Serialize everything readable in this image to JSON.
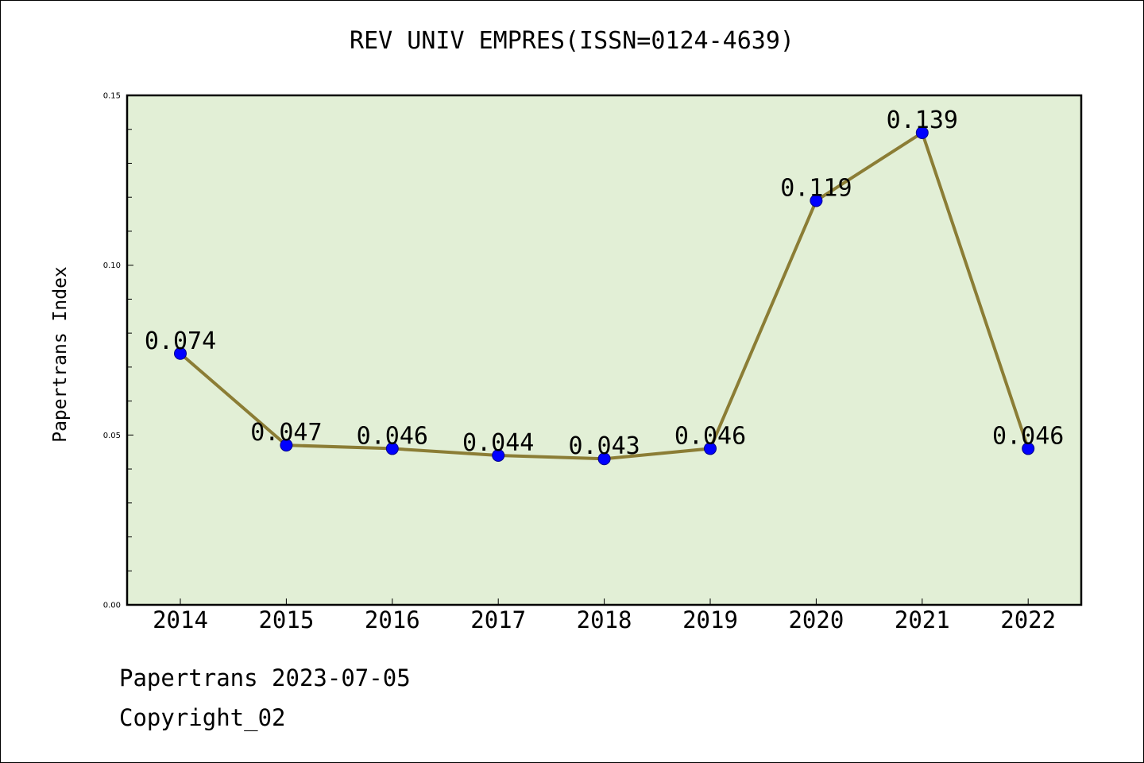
{
  "chart_data": {
    "type": "line",
    "title": "REV UNIV EMPRES(ISSN=0124-4639)",
    "xlabel": "",
    "ylabel": "Papertrans Index",
    "categories": [
      "2014",
      "2015",
      "2016",
      "2017",
      "2018",
      "2019",
      "2020",
      "2021",
      "2022"
    ],
    "series": [
      {
        "values": [
          0.074,
          0.047,
          0.046,
          0.044,
          0.043,
          0.046,
          0.119,
          0.139,
          0.046
        ],
        "labels": [
          "0.074",
          "0.047",
          "0.046",
          "0.044",
          "0.043",
          "0.046",
          "0.119",
          "0.139",
          "0.046"
        ]
      }
    ],
    "ylim": [
      0.0,
      0.15
    ],
    "yticks": [
      "0.00",
      "0.05",
      "0.10",
      "0.15"
    ],
    "grid": false,
    "colors": {
      "plot_background": "#e2efd6",
      "line": "#8b7d35",
      "marker": "#0000ff"
    }
  },
  "footer": {
    "line1": "Papertrans 2023-07-05",
    "line2": "Copyright_02"
  }
}
